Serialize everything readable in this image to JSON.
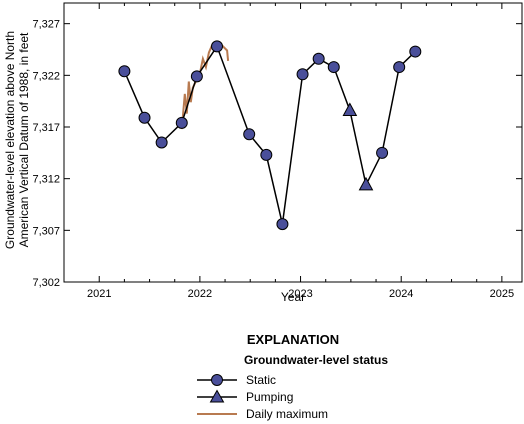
{
  "chart_data": {
    "type": "line",
    "xlabel": "Year",
    "ylabel_lines": [
      "Groundwater-level elevation above North",
      "American Vertical Datum of 1988, in feet"
    ],
    "xlim": [
      2020.65,
      2025.2
    ],
    "ylim": [
      7302,
      7329
    ],
    "x_ticks": [
      2021,
      2022,
      2023,
      2024,
      2025
    ],
    "x_tick_labels": [
      "2021",
      "2022",
      "2023",
      "2024",
      "2025"
    ],
    "y_ticks": [
      7302,
      7307,
      7312,
      7317,
      7322,
      7327
    ],
    "y_tick_labels": [
      "7,302",
      "7,307",
      "7,312",
      "7,317",
      "7,322",
      "7,327"
    ],
    "series": [
      {
        "name": "Static",
        "marker": "circle",
        "points": [
          {
            "x": 2021.25,
            "y": 7322.4
          },
          {
            "x": 2021.45,
            "y": 7317.9
          },
          {
            "x": 2021.62,
            "y": 7315.5
          },
          {
            "x": 2021.82,
            "y": 7317.4
          },
          {
            "x": 2021.97,
            "y": 7321.9
          },
          {
            "x": 2022.17,
            "y": 7324.8
          },
          {
            "x": 2022.49,
            "y": 7316.3
          },
          {
            "x": 2022.66,
            "y": 7314.3
          },
          {
            "x": 2022.82,
            "y": 7307.6
          },
          {
            "x": 2023.02,
            "y": 7322.1
          },
          {
            "x": 2023.18,
            "y": 7323.6
          },
          {
            "x": 2023.33,
            "y": 7322.8
          },
          {
            "x": 2023.49,
            "y": 7318.6
          },
          {
            "x": 2023.65,
            "y": 7311.4
          },
          {
            "x": 2023.81,
            "y": 7314.5
          },
          {
            "x": 2023.98,
            "y": 7322.8
          },
          {
            "x": 2024.14,
            "y": 7324.3
          }
        ],
        "pumping_indices": [
          12,
          13
        ]
      },
      {
        "name": "Daily maximum",
        "type": "line",
        "points": [
          {
            "x": 2021.82,
            "y": 7316.8
          },
          {
            "x": 2021.85,
            "y": 7320.2
          },
          {
            "x": 2021.87,
            "y": 7318.3
          },
          {
            "x": 2021.89,
            "y": 7321.4
          },
          {
            "x": 2021.91,
            "y": 7319.4
          },
          {
            "x": 2021.93,
            "y": 7320.8
          },
          {
            "x": 2022.0,
            "y": 7322.2
          },
          {
            "x": 2022.03,
            "y": 7323.6
          },
          {
            "x": 2022.06,
            "y": 7322.8
          },
          {
            "x": 2022.09,
            "y": 7324.2
          },
          {
            "x": 2022.12,
            "y": 7324.9
          },
          {
            "x": 2022.22,
            "y": 7324.9
          },
          {
            "x": 2022.27,
            "y": 7324.4
          },
          {
            "x": 2022.28,
            "y": 7323.4
          }
        ]
      }
    ],
    "colors": {
      "marker_fill": "#4a4f9a",
      "line": "#000000",
      "daily_max": "#b87a50"
    },
    "grid": false
  },
  "legend": {
    "title": "EXPLANATION",
    "subtitle": "Groundwater-level status",
    "items": [
      {
        "label": "Static",
        "symbol": "circle-line"
      },
      {
        "label": "Pumping",
        "symbol": "triangle-line"
      },
      {
        "label": "Daily maximum",
        "symbol": "brown-line"
      }
    ]
  }
}
